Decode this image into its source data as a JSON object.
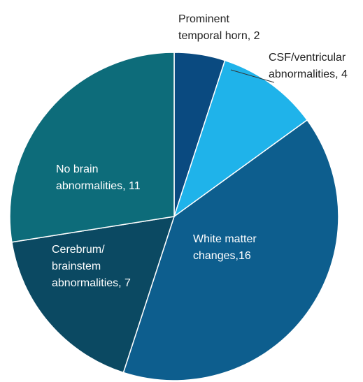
{
  "chart_data": {
    "type": "pie",
    "categories": [
      "Prominent temporal horn",
      "CSF/ventricular abnormalities",
      "White matter changes",
      "Cerebrum/brainstem abnormalities",
      "No brain abnormalities"
    ],
    "values": [
      2,
      4,
      16,
      7,
      11
    ],
    "value_labels": [
      [
        "Prominent",
        "temporal horn, 2"
      ],
      [
        "CSF/ventricular",
        "abnormalities, 4"
      ],
      [
        "White matter",
        "changes,16"
      ],
      [
        "Cerebrum/",
        "brainstem",
        "abnormalities, 7"
      ],
      [
        "No brain",
        "abnormalities, 11"
      ]
    ],
    "colors": [
      "#0a4a80",
      "#1fb3ea",
      "#0d5e8e",
      "#0b4962",
      "#0d6c7a"
    ]
  }
}
